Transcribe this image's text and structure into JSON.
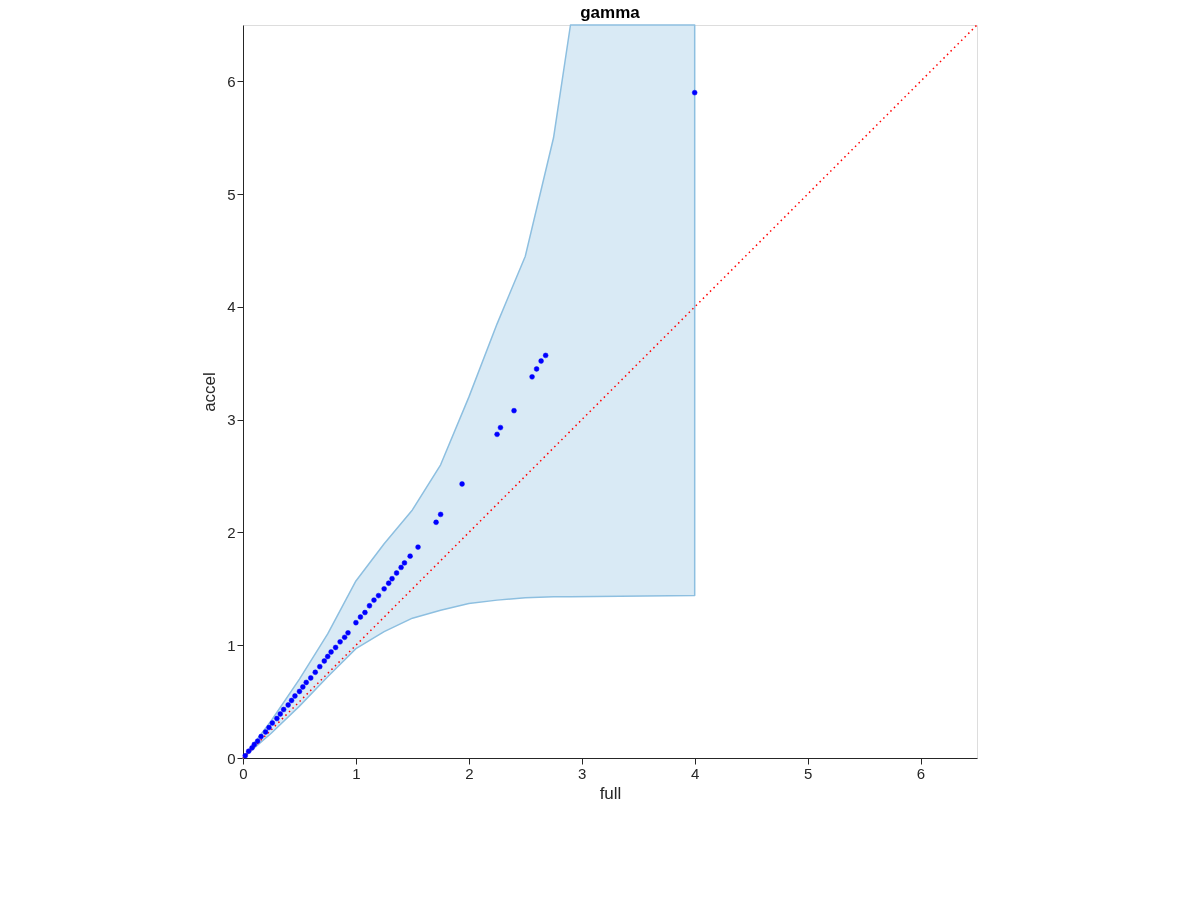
{
  "chart_data": {
    "type": "line",
    "title": "gamma",
    "xlabel": "full",
    "ylabel": "accel",
    "xlim": [
      0,
      6.5
    ],
    "ylim": [
      0,
      6.5
    ],
    "xticks": [
      0,
      1,
      2,
      3,
      4,
      5,
      6
    ],
    "yticks": [
      0,
      1,
      2,
      3,
      4,
      5,
      6
    ],
    "grid": false,
    "marker": "circle",
    "series": [
      {
        "color": "#8dbfe0",
        "marker": "none",
        "x": [
          0,
          0.25,
          0.5,
          0.75,
          1,
          1.25,
          1.5,
          1.75,
          2,
          2.25,
          2.5,
          2.75,
          2.9,
          4
        ],
        "values": [
          null,
          null,
          null,
          null,
          null,
          null,
          null,
          null,
          null,
          null,
          null,
          null,
          null,
          null
        ],
        "upper": [
          0,
          0.33,
          0.7,
          1.1,
          1.57,
          1.9,
          2.2,
          2.6,
          3.2,
          3.85,
          4.45,
          5.5,
          6.5,
          6.5
        ],
        "lower": [
          0,
          0.22,
          0.46,
          0.72,
          0.97,
          1.12,
          1.24,
          1.31,
          1.37,
          1.4,
          1.42,
          1.43,
          1.43,
          1.44
        ]
      },
      {
        "color": "#ff0000",
        "line_style": "dotted",
        "marker": "none",
        "x": [
          0,
          6.5
        ],
        "values": [
          0,
          6.5
        ]
      },
      {
        "type": "scatter",
        "color": "#0000ff",
        "x": [
          0.02,
          0.05,
          0.08,
          0.1,
          0.13,
          0.16,
          0.2,
          0.23,
          0.26,
          0.3,
          0.33,
          0.36,
          0.4,
          0.43,
          0.46,
          0.5,
          0.53,
          0.56,
          0.6,
          0.64,
          0.68,
          0.72,
          0.75,
          0.78,
          0.82,
          0.86,
          0.9,
          0.93,
          1.0,
          1.04,
          1.08,
          1.12,
          1.16,
          1.2,
          1.25,
          1.29,
          1.32,
          1.36,
          1.4,
          1.43,
          1.48,
          1.55,
          1.71,
          1.75,
          1.94,
          2.25,
          2.28,
          2.4,
          2.56,
          2.6,
          2.64,
          2.68,
          4.0
        ],
        "values": [
          0.02,
          0.06,
          0.09,
          0.12,
          0.15,
          0.19,
          0.23,
          0.27,
          0.31,
          0.35,
          0.39,
          0.43,
          0.47,
          0.51,
          0.55,
          0.59,
          0.63,
          0.67,
          0.71,
          0.76,
          0.81,
          0.86,
          0.9,
          0.94,
          0.98,
          1.03,
          1.07,
          1.11,
          1.2,
          1.25,
          1.29,
          1.35,
          1.4,
          1.44,
          1.5,
          1.55,
          1.59,
          1.64,
          1.69,
          1.73,
          1.79,
          1.87,
          2.09,
          2.16,
          2.43,
          2.87,
          2.93,
          3.08,
          3.38,
          3.45,
          3.52,
          3.57,
          5.9
        ]
      }
    ]
  }
}
